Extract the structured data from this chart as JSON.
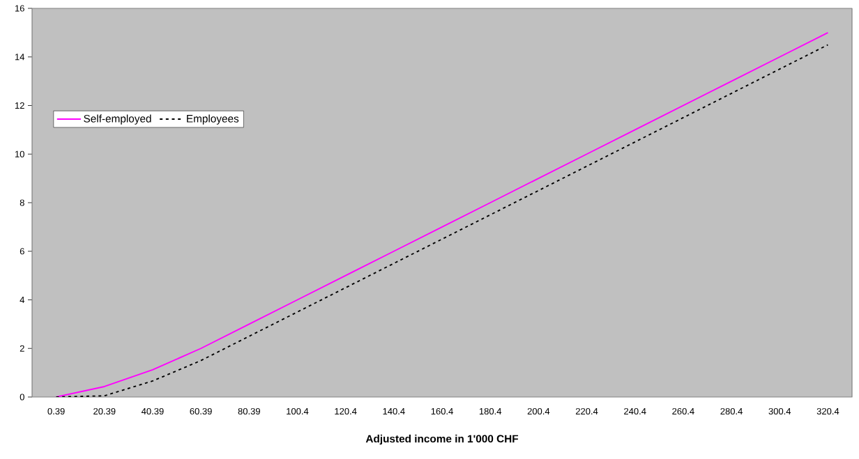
{
  "chart_data": {
    "type": "line",
    "xlabel": "Adjusted income in 1'000 CHF",
    "categories": [
      "0.39",
      "20.39",
      "40.39",
      "60.39",
      "80.39",
      "100.4",
      "120.4",
      "140.4",
      "160.4",
      "180.4",
      "200.4",
      "220.4",
      "240.4",
      "260.4",
      "280.4",
      "300.4",
      "320.4"
    ],
    "series": [
      {
        "name": "Self-employed",
        "color": "#ff00ff",
        "line_style": "solid",
        "values": [
          0,
          0.43,
          1.12,
          2,
          3,
          4,
          5,
          6,
          7,
          8,
          9,
          10,
          11,
          12,
          13,
          14,
          15
        ]
      },
      {
        "name": "Employees",
        "color": "#000000",
        "line_style": "dashed",
        "values": [
          0,
          0.05,
          0.66,
          1.5,
          2.5,
          3.5,
          4.5,
          5.5,
          6.5,
          7.5,
          8.5,
          9.5,
          10.5,
          11.5,
          12.5,
          13.5,
          14.5
        ]
      }
    ],
    "ylim": [
      0,
      16
    ],
    "yticks": [
      0,
      2,
      4,
      6,
      8,
      10,
      12,
      14,
      16
    ],
    "grid": false,
    "legend": "left",
    "marker": "none"
  }
}
